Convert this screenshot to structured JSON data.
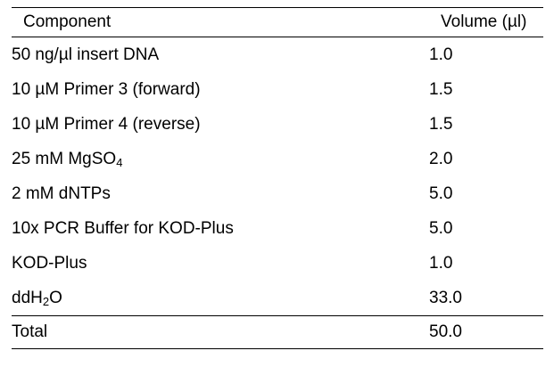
{
  "table": {
    "headers": [
      "Component",
      "Volume (µl)"
    ],
    "rows": [
      {
        "component": "50 ng/µl insert DNA",
        "volume": "1.0"
      },
      {
        "component": "10 µM Primer 3 (forward)",
        "volume": "1.5"
      },
      {
        "component": "10 µM Primer 4 (reverse)",
        "volume": "1.5"
      },
      {
        "component_pre": "25 mM MgSO",
        "component_sub": "4",
        "component_post": "",
        "volume": "2.0"
      },
      {
        "component": "2 mM dNTPs",
        "volume": "5.0"
      },
      {
        "component": "10x PCR Buffer for KOD-Plus",
        "volume": "5.0"
      },
      {
        "component": "KOD-Plus",
        "volume": "1.0"
      },
      {
        "component_pre": "ddH",
        "component_sub": "2",
        "component_post": "O",
        "volume": "33.0"
      }
    ],
    "total": {
      "component": "Total",
      "volume": "50.0"
    }
  }
}
